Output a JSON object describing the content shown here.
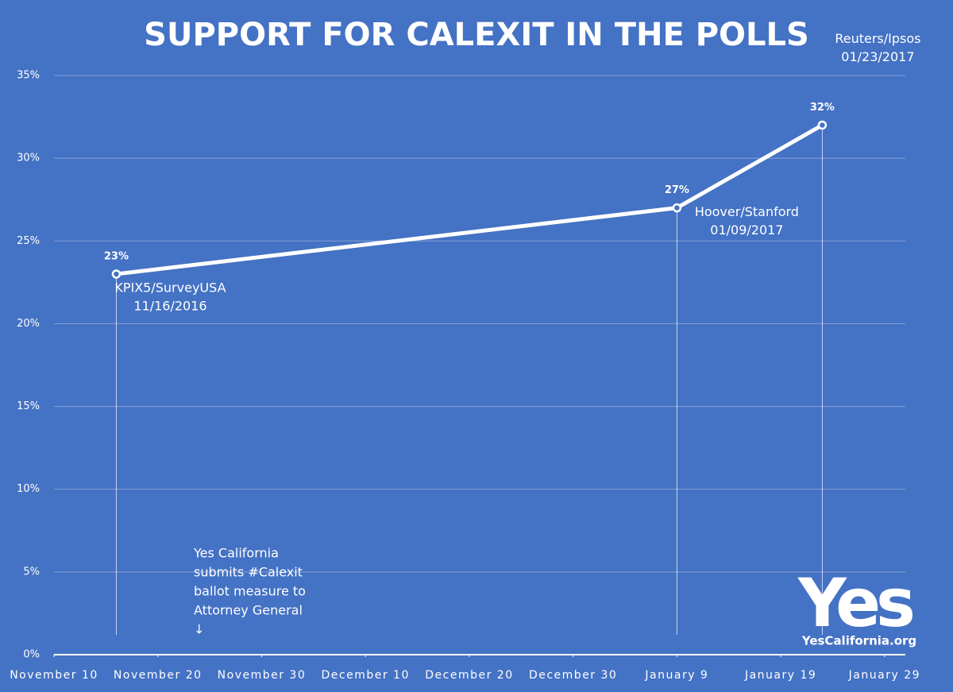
{
  "chart_data": {
    "type": "line",
    "title": "SUPPORT FOR CALEXIT IN THE POLLS",
    "x": [
      "2016-11-16",
      "2017-01-09",
      "2017-01-23"
    ],
    "series": [
      {
        "name": "Support",
        "color": "#ffffff",
        "values": [
          23,
          27,
          32
        ],
        "value_labels": [
          "23%",
          "27%",
          "32%"
        ]
      }
    ],
    "point_labels": [
      [
        "KPIX5/SurveyUSA",
        "11/16/2016"
      ],
      [
        "Hoover/Stanford",
        "01/09/2017"
      ],
      [
        "Reuters/Ipsos",
        "01/23/2017"
      ]
    ],
    "note": [
      "Yes California",
      "submits #Calexit",
      "ballot measure to",
      "Attorney General",
      "↓"
    ],
    "logo": {
      "main": "Yes",
      "site": "YesCalifornia.org"
    },
    "xlim": [
      "2016-11-10",
      "2017-01-31"
    ],
    "xticks": [
      {
        "value": "2016-11-10",
        "label": "November 10"
      },
      {
        "value": "2016-11-20",
        "label": "November 20"
      },
      {
        "value": "2016-11-30",
        "label": "November 30"
      },
      {
        "value": "2016-12-10",
        "label": "December 10"
      },
      {
        "value": "2016-12-20",
        "label": "December 20"
      },
      {
        "value": "2016-12-30",
        "label": "December 30"
      },
      {
        "value": "2017-01-09",
        "label": "January 9"
      },
      {
        "value": "2017-01-19",
        "label": "January 19"
      },
      {
        "value": "2017-01-29",
        "label": "January 29"
      }
    ],
    "ylim": [
      0,
      35
    ],
    "yticks": [
      {
        "value": 0,
        "label": "0%"
      },
      {
        "value": 5,
        "label": "5%"
      },
      {
        "value": 10,
        "label": "10%"
      },
      {
        "value": 15,
        "label": "15%"
      },
      {
        "value": 20,
        "label": "20%"
      },
      {
        "value": 25,
        "label": "25%"
      },
      {
        "value": 30,
        "label": "30%"
      },
      {
        "value": 35,
        "label": "35%"
      }
    ],
    "grid": true
  }
}
